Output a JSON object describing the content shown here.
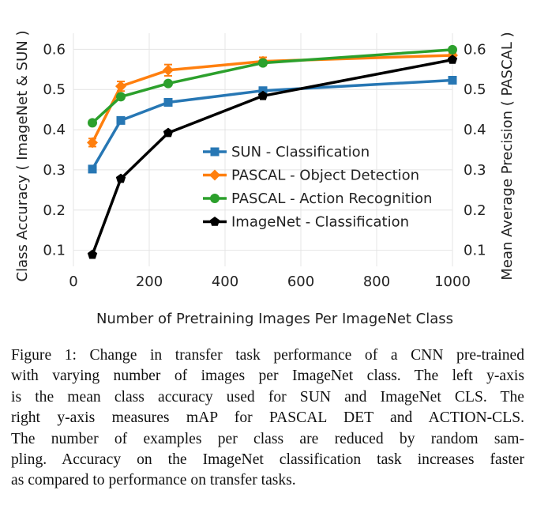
{
  "chart_data": {
    "type": "line",
    "xlabel": "Number of Pretraining Images Per ImageNet Class",
    "ylabel_left": "Class Accuracy ( ImageNet & SUN )",
    "ylabel_right": "Mean Average Precision ( PASCAL )",
    "xlim": [
      0,
      1000
    ],
    "ylim": [
      0.06,
      0.64
    ],
    "x_ticks": [
      "0",
      "200",
      "400",
      "600",
      "800",
      "1000"
    ],
    "y_ticks_left": [
      "0.1",
      "0.2",
      "0.3",
      "0.4",
      "0.5",
      "0.6"
    ],
    "y_ticks_right": [
      "0.1",
      "0.2",
      "0.3",
      "0.4",
      "0.5",
      "0.6"
    ],
    "grid": true,
    "legend_position": "center-right",
    "series": [
      {
        "name": "SUN - Classification",
        "color": "#2777b4",
        "marker": "square",
        "x": [
          50,
          125,
          250,
          500,
          1000
        ],
        "y": [
          0.302,
          0.423,
          0.468,
          0.497,
          0.523
        ],
        "err": [
          0,
          0,
          0,
          0,
          0
        ]
      },
      {
        "name": "PASCAL - Object Detection",
        "color": "#ff7f0e",
        "marker": "diamond",
        "x": [
          50,
          125,
          250,
          500,
          1000
        ],
        "y": [
          0.368,
          0.508,
          0.548,
          0.57,
          0.585
        ],
        "err": [
          0.01,
          0.012,
          0.014,
          0.01,
          0.005
        ]
      },
      {
        "name": "PASCAL - Action Recognition",
        "color": "#2ca02c",
        "marker": "circle",
        "x": [
          50,
          125,
          250,
          500,
          1000
        ],
        "y": [
          0.417,
          0.482,
          0.515,
          0.566,
          0.599
        ],
        "err": [
          0,
          0,
          0,
          0,
          0
        ]
      },
      {
        "name": "ImageNet - Classification",
        "color": "#000000",
        "marker": "pentagon",
        "x": [
          50,
          125,
          250,
          500,
          1000
        ],
        "y": [
          0.089,
          0.278,
          0.392,
          0.484,
          0.574
        ],
        "err": [
          0,
          0,
          0,
          0,
          0
        ]
      }
    ]
  },
  "caption": {
    "lines": [
      "Figure 1: Change in transfer task performance of a CNN pre-trained",
      "with varying number of images per ImageNet class. The left y-axis",
      "is the mean class accuracy used for SUN and ImageNet CLS. The",
      "right y-axis measures mAP for PASCAL DET and ACTION-CLS.",
      "The number of examples per class are reduced by random sam-",
      "pling. Accuracy on the ImageNet classification task increases faster",
      "as compared to performance on transfer tasks."
    ]
  }
}
